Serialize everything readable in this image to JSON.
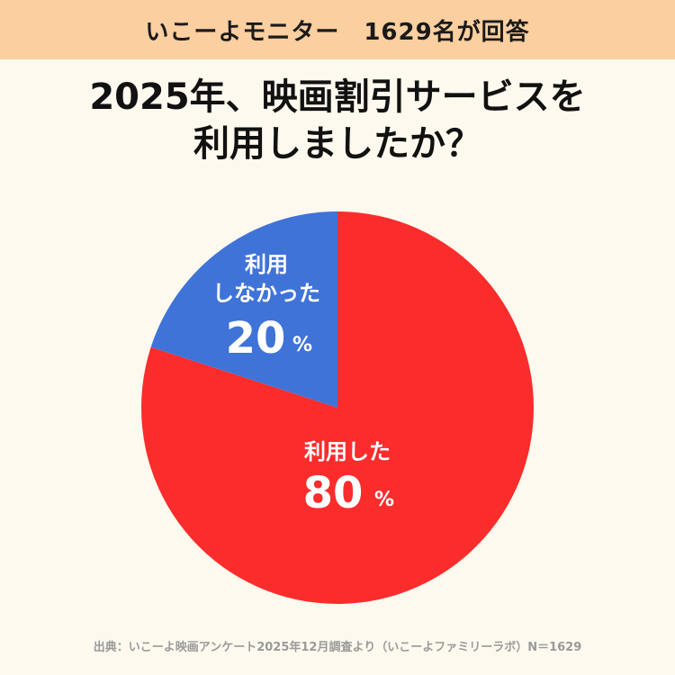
{
  "header": {
    "banner": "いこーよモニター　1629名が回答"
  },
  "title_lines": [
    "2025年、映画割引サービスを",
    "利用しましたか？"
  ],
  "chart_data": {
    "type": "pie",
    "title": "2025年、映画割引サービスを利用しましたか？",
    "slices": [
      {
        "label_lines": [
          "利用した"
        ],
        "value": 80,
        "value_text": "80",
        "unit": "%",
        "color": "#fb2c2c"
      },
      {
        "label_lines": [
          "利用",
          "しなかった"
        ],
        "value": 20,
        "value_text": "20",
        "unit": "%",
        "color": "#3f73d8"
      }
    ],
    "start_angle": "12 o'clock",
    "direction": "clockwise",
    "legend": "none"
  },
  "footer": {
    "source": "出典：いこーよ映画アンケート2025年12月調査より（いこーよファミリーラボ）N＝1629"
  }
}
